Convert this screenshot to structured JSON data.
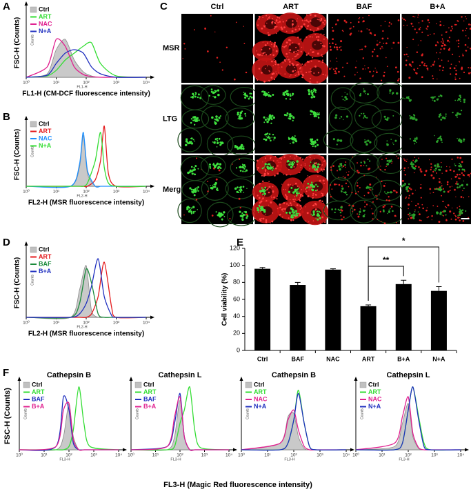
{
  "chart_data": [
    {
      "type": "density",
      "panel_label": "A",
      "x_label": "FL1-H (CM-DCF fluorescence intensity)",
      "y_label": "FSC-H (Counts)",
      "x_inner_label": "FL1-H",
      "y_inner_label": "Counts",
      "xscale": "log",
      "xlim": [
        1,
        10000
      ],
      "xticks": [
        {
          "value": 1,
          "label": "10⁰"
        },
        {
          "value": 10,
          "label": "10¹"
        },
        {
          "value": 100,
          "label": "10²"
        },
        {
          "value": 1000,
          "label": "10³"
        },
        {
          "value": 10000,
          "label": "10⁴"
        }
      ],
      "ylim": [
        0,
        100
      ],
      "legend": "upper left",
      "x": [
        1,
        5,
        10,
        20,
        40,
        80,
        150,
        300,
        1000,
        10000
      ],
      "series": [
        {
          "name": "Ctrl",
          "color": "#c0c0c0",
          "fill": true,
          "values": [
            0,
            5,
            40,
            55,
            25,
            8,
            2,
            0,
            0,
            0
          ]
        },
        {
          "name": "ART",
          "color": "#33dd33",
          "values": [
            0,
            2,
            10,
            25,
            35,
            45,
            50,
            20,
            2,
            0
          ]
        },
        {
          "name": "NAC",
          "color": "#e0208f",
          "values": [
            0,
            15,
            55,
            45,
            15,
            4,
            1,
            0,
            0,
            0
          ]
        },
        {
          "name": "N+A",
          "color": "#1f2fbf",
          "values": [
            0,
            3,
            20,
            35,
            40,
            35,
            15,
            5,
            0,
            0
          ]
        }
      ]
    },
    {
      "type": "density",
      "panel_label": "B",
      "x_label": "FL2-H (MSR fluorescence intensity)",
      "y_label": "FSC-H (Counts)",
      "x_inner_label": "FL2-H",
      "y_inner_label": "Counts",
      "xscale": "log",
      "xlim": [
        1,
        10000
      ],
      "xticks": [
        {
          "value": 1,
          "label": "10⁰"
        },
        {
          "value": 10,
          "label": "10¹"
        },
        {
          "value": 100,
          "label": "10²"
        },
        {
          "value": 1000,
          "label": "10³"
        },
        {
          "value": 10000,
          "label": "10⁴"
        }
      ],
      "ylim": [
        0,
        100
      ],
      "legend": "upper left",
      "x": [
        1,
        30,
        60,
        80,
        110,
        200,
        300,
        400,
        550,
        1000,
        10000
      ],
      "series": [
        {
          "name": "Ctrl",
          "color": "#c0c0c0",
          "fill": true,
          "values": [
            0,
            0,
            30,
            80,
            20,
            0,
            0,
            0,
            0,
            0,
            0
          ]
        },
        {
          "name": "ART",
          "color": "#e41a1c",
          "values": [
            0,
            0,
            0,
            0,
            0,
            10,
            40,
            95,
            20,
            0,
            0
          ]
        },
        {
          "name": "NAC",
          "color": "#1e90ff",
          "values": [
            0,
            0,
            35,
            85,
            25,
            0,
            0,
            0,
            0,
            0,
            0
          ]
        },
        {
          "name": "N+A",
          "color": "#33dd33",
          "values": [
            0,
            0,
            0,
            0,
            5,
            40,
            85,
            30,
            5,
            0,
            0
          ]
        }
      ]
    },
    {
      "type": "density",
      "panel_label": "D",
      "x_label": "FL2-H (MSR fluorescence intensity)",
      "y_label": "FSC-H (Counts)",
      "x_inner_label": "FL2-H",
      "y_inner_label": "Counts",
      "xscale": "log",
      "xlim": [
        1,
        10000
      ],
      "xticks": [
        {
          "value": 1,
          "label": "10⁰"
        },
        {
          "value": 10,
          "label": "10¹"
        },
        {
          "value": 100,
          "label": "10²"
        },
        {
          "value": 1000,
          "label": "10³"
        },
        {
          "value": 10000,
          "label": "10⁴"
        }
      ],
      "ylim": [
        0,
        100
      ],
      "legend": "upper left",
      "x": [
        1,
        30,
        60,
        100,
        150,
        250,
        400,
        700,
        1000,
        10000
      ],
      "series": [
        {
          "name": "Ctrl",
          "color": "#c0c0c0",
          "fill": true,
          "values": [
            0,
            0,
            40,
            75,
            10,
            0,
            0,
            0,
            0,
            0
          ]
        },
        {
          "name": "ART",
          "color": "#e41a1c",
          "values": [
            0,
            0,
            0,
            0,
            5,
            30,
            80,
            15,
            0,
            0
          ]
        },
        {
          "name": "BAF",
          "color": "#1a8a3a",
          "values": [
            0,
            0,
            20,
            70,
            50,
            5,
            0,
            0,
            0,
            0
          ]
        },
        {
          "name": "B+A",
          "color": "#1f2fbf",
          "values": [
            0,
            0,
            5,
            20,
            45,
            85,
            30,
            3,
            0,
            0
          ]
        }
      ]
    },
    {
      "type": "bar",
      "panel_label": "E",
      "y_label": "Cell viability (%)",
      "categories": [
        "Ctrl",
        "BAF",
        "NAC",
        "ART",
        "B+A",
        "N+A"
      ],
      "values": [
        96,
        77,
        95,
        52,
        78,
        70
      ],
      "errors": [
        1.5,
        3,
        1,
        1.5,
        4.5,
        5
      ],
      "color": "#000000",
      "ylim": [
        0,
        120
      ],
      "yticks": [
        0,
        20,
        40,
        60,
        80,
        100,
        120
      ],
      "annotations": [
        {
          "text": "**",
          "from": "ART",
          "to": "B+A"
        },
        {
          "text": "*",
          "from": "ART",
          "to": "N+A"
        }
      ]
    },
    {
      "type": "density",
      "title": "Cathepsin B",
      "x_inner_label": "FL3-H",
      "y_inner_label": "Counts",
      "xscale": "log",
      "xlim": [
        1,
        10000
      ],
      "xticks": [
        {
          "value": 1,
          "label": "10⁰"
        },
        {
          "value": 10,
          "label": "10¹"
        },
        {
          "value": 100,
          "label": "10²"
        },
        {
          "value": 1000,
          "label": "10³"
        },
        {
          "value": 10000,
          "label": "10⁴"
        }
      ],
      "ylim": [
        0,
        100
      ],
      "legend": "upper left",
      "x": [
        1,
        30,
        60,
        100,
        150,
        250,
        400,
        700,
        10000
      ],
      "series": [
        {
          "name": "Ctrl",
          "color": "#c0c0c0",
          "fill": true,
          "values": [
            0,
            0,
            20,
            70,
            20,
            0,
            0,
            0,
            0
          ]
        },
        {
          "name": "ART",
          "color": "#33dd33",
          "values": [
            0,
            0,
            0,
            5,
            30,
            95,
            40,
            5,
            0
          ]
        },
        {
          "name": "BAF",
          "color": "#1f2fbf",
          "values": [
            0,
            5,
            80,
            60,
            10,
            0,
            0,
            0,
            0
          ]
        },
        {
          "name": "B+A",
          "color": "#e0208f",
          "values": [
            0,
            5,
            60,
            70,
            15,
            0,
            0,
            0,
            0
          ]
        }
      ]
    },
    {
      "type": "density",
      "title": "Cathepsin L",
      "x_inner_label": "FL3-H",
      "y_inner_label": "Counts",
      "xscale": "log",
      "xlim": [
        1,
        10000
      ],
      "xticks": [
        {
          "value": 1,
          "label": "10⁰"
        },
        {
          "value": 10,
          "label": "10¹"
        },
        {
          "value": 100,
          "label": "10²"
        },
        {
          "value": 1000,
          "label": "10³"
        },
        {
          "value": 10000,
          "label": "10⁴"
        }
      ],
      "ylim": [
        0,
        100
      ],
      "legend": "upper left",
      "x": [
        1,
        30,
        60,
        100,
        150,
        250,
        400,
        700,
        10000
      ],
      "series": [
        {
          "name": "Ctrl",
          "color": "#c0c0c0",
          "fill": true,
          "values": [
            0,
            0,
            20,
            75,
            20,
            0,
            0,
            0,
            0
          ]
        },
        {
          "name": "ART",
          "color": "#33dd33",
          "values": [
            0,
            0,
            5,
            40,
            60,
            95,
            30,
            3,
            0
          ]
        },
        {
          "name": "BAF",
          "color": "#1f2fbf",
          "values": [
            0,
            5,
            40,
            85,
            20,
            0,
            0,
            0,
            0
          ]
        },
        {
          "name": "B+A",
          "color": "#e0208f",
          "values": [
            0,
            5,
            50,
            80,
            20,
            0,
            0,
            0,
            0
          ]
        }
      ]
    },
    {
      "type": "density",
      "title": "Cathepsin B",
      "x_inner_label": "FL3-H",
      "y_inner_label": "Counts",
      "xscale": "log",
      "xlim": [
        1,
        10000
      ],
      "xticks": [
        {
          "value": 1,
          "label": "10⁰"
        },
        {
          "value": 10,
          "label": "10¹"
        },
        {
          "value": 100,
          "label": "10²"
        },
        {
          "value": 1000,
          "label": "10³"
        },
        {
          "value": 10000,
          "label": "10⁴"
        }
      ],
      "ylim": [
        0,
        100
      ],
      "legend": "upper left",
      "x": [
        1,
        30,
        60,
        100,
        150,
        250,
        400,
        700,
        10000
      ],
      "series": [
        {
          "name": "Ctrl",
          "color": "#c0c0c0",
          "fill": true,
          "values": [
            0,
            10,
            50,
            55,
            20,
            2,
            0,
            0,
            0
          ]
        },
        {
          "name": "ART",
          "color": "#33dd33",
          "values": [
            0,
            0,
            10,
            45,
            90,
            40,
            5,
            0,
            0
          ]
        },
        {
          "name": "NAC",
          "color": "#e0208f",
          "values": [
            0,
            10,
            45,
            60,
            30,
            5,
            0,
            0,
            0
          ]
        },
        {
          "name": "N+A",
          "color": "#1f2fbf",
          "values": [
            0,
            0,
            10,
            45,
            85,
            40,
            5,
            0,
            0
          ]
        }
      ]
    },
    {
      "type": "density",
      "title": "Cathepsin L",
      "x_inner_label": "FL3-H",
      "y_inner_label": "Counts",
      "xscale": "log",
      "xlim": [
        1,
        10000
      ],
      "xticks": [
        {
          "value": 1,
          "label": "10⁰"
        },
        {
          "value": 10,
          "label": "10¹"
        },
        {
          "value": 100,
          "label": "10²"
        },
        {
          "value": 1000,
          "label": "10³"
        },
        {
          "value": 10000,
          "label": "10⁴"
        }
      ],
      "ylim": [
        0,
        100
      ],
      "legend": "upper left",
      "x": [
        1,
        30,
        60,
        100,
        150,
        250,
        400,
        700,
        10000
      ],
      "series": [
        {
          "name": "Ctrl",
          "color": "#c0c0c0",
          "fill": true,
          "values": [
            0,
            5,
            40,
            70,
            20,
            2,
            0,
            0,
            0
          ]
        },
        {
          "name": "ART",
          "color": "#33dd33",
          "values": [
            0,
            0,
            10,
            60,
            95,
            50,
            10,
            0,
            0
          ]
        },
        {
          "name": "NAC",
          "color": "#e0208f",
          "values": [
            0,
            10,
            50,
            80,
            25,
            3,
            0,
            0,
            0
          ]
        },
        {
          "name": "N+A",
          "color": "#1f2fbf",
          "values": [
            0,
            0,
            10,
            60,
            95,
            45,
            5,
            0,
            0
          ]
        }
      ]
    }
  ],
  "microscopy": {
    "panel_label": "C",
    "columns": [
      "Ctrl",
      "ART",
      "BAF",
      "B+A"
    ],
    "rows": [
      "MSR",
      "LTG",
      "Merge"
    ]
  },
  "panel_f": {
    "panel_label": "F",
    "y_label": "FSC-H (Counts)",
    "x_label": "FL3-H (Magic Red fluorescence intensity)"
  }
}
